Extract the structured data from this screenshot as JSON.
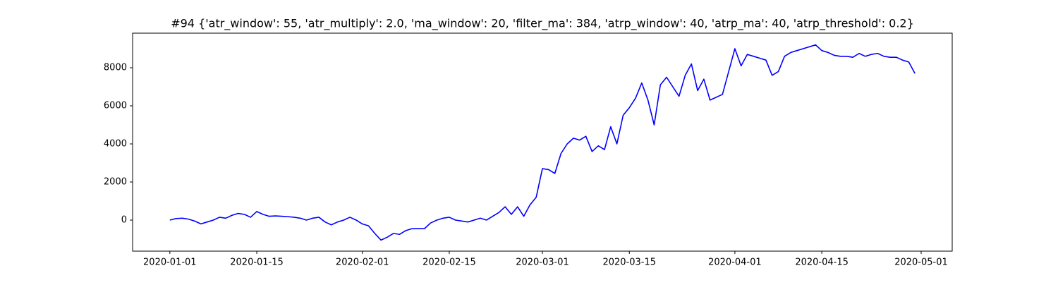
{
  "chart_data": {
    "type": "line",
    "title": "#94 {'atr_window': 55, 'atr_multiply': 2.0, 'ma_window': 20, 'filter_ma': 384, 'atrp_window': 40, 'atrp_ma': 40, 'atrp_threshold': 0.2}",
    "x": [
      "2020-01-01",
      "2020-01-02",
      "2020-01-03",
      "2020-01-04",
      "2020-01-05",
      "2020-01-06",
      "2020-01-07",
      "2020-01-08",
      "2020-01-09",
      "2020-01-10",
      "2020-01-11",
      "2020-01-12",
      "2020-01-13",
      "2020-01-14",
      "2020-01-15",
      "2020-01-16",
      "2020-01-17",
      "2020-01-18",
      "2020-01-19",
      "2020-01-20",
      "2020-01-21",
      "2020-01-22",
      "2020-01-23",
      "2020-01-24",
      "2020-01-25",
      "2020-01-26",
      "2020-01-27",
      "2020-01-28",
      "2020-01-29",
      "2020-01-30",
      "2020-01-31",
      "2020-02-01",
      "2020-02-02",
      "2020-02-03",
      "2020-02-04",
      "2020-02-05",
      "2020-02-06",
      "2020-02-07",
      "2020-02-08",
      "2020-02-09",
      "2020-02-10",
      "2020-02-11",
      "2020-02-12",
      "2020-02-13",
      "2020-02-14",
      "2020-02-15",
      "2020-02-16",
      "2020-02-17",
      "2020-02-18",
      "2020-02-19",
      "2020-02-20",
      "2020-02-21",
      "2020-02-22",
      "2020-02-23",
      "2020-02-24",
      "2020-02-25",
      "2020-02-26",
      "2020-02-27",
      "2020-02-28",
      "2020-02-29",
      "2020-03-01",
      "2020-03-02",
      "2020-03-03",
      "2020-03-04",
      "2020-03-05",
      "2020-03-06",
      "2020-03-07",
      "2020-03-08",
      "2020-03-09",
      "2020-03-10",
      "2020-03-11",
      "2020-03-12",
      "2020-03-13",
      "2020-03-14",
      "2020-03-15",
      "2020-03-16",
      "2020-03-17",
      "2020-03-18",
      "2020-03-19",
      "2020-03-20",
      "2020-03-21",
      "2020-03-22",
      "2020-03-23",
      "2020-03-24",
      "2020-03-25",
      "2020-03-26",
      "2020-03-27",
      "2020-03-28",
      "2020-03-29",
      "2020-03-30",
      "2020-03-31",
      "2020-04-01",
      "2020-04-02",
      "2020-04-03",
      "2020-04-04",
      "2020-04-05",
      "2020-04-06",
      "2020-04-07",
      "2020-04-08",
      "2020-04-09",
      "2020-04-10",
      "2020-04-11",
      "2020-04-12",
      "2020-04-13",
      "2020-04-14",
      "2020-04-15",
      "2020-04-16",
      "2020-04-17",
      "2020-04-18",
      "2020-04-19",
      "2020-04-20",
      "2020-04-21",
      "2020-04-22",
      "2020-04-23",
      "2020-04-24",
      "2020-04-25",
      "2020-04-26",
      "2020-04-27",
      "2020-04-28",
      "2020-04-29",
      "2020-04-30"
    ],
    "series": [
      {
        "color": "#0000ff",
        "values": [
          0,
          80,
          100,
          50,
          -50,
          -200,
          -100,
          0,
          150,
          100,
          250,
          350,
          300,
          150,
          450,
          300,
          200,
          220,
          200,
          180,
          150,
          100,
          0,
          100,
          150,
          -100,
          -250,
          -100,
          0,
          150,
          0,
          -200,
          -300,
          -700,
          -1050,
          -900,
          -700,
          -750,
          -550,
          -450,
          -450,
          -450,
          -150,
          0,
          100,
          150,
          0,
          -50,
          -100,
          0,
          100,
          0,
          200,
          400,
          700,
          300,
          700,
          200,
          800,
          1200,
          2700,
          2650,
          2450,
          3500,
          4000,
          4300,
          4200,
          4400,
          3600,
          3900,
          3700,
          4900,
          4000,
          5500,
          5900,
          6400,
          7200,
          6300,
          5000,
          7100,
          7500,
          7000,
          6500,
          7600,
          8200,
          6800,
          7400,
          6300,
          6450,
          6600,
          7800,
          9000,
          8100,
          8700,
          8600,
          8500,
          8400,
          7600,
          7800,
          8600,
          8800,
          8900,
          9000,
          9100,
          9200,
          8900,
          8800,
          8650,
          8600,
          8600,
          8550,
          8750,
          8600,
          8700,
          8750,
          8600,
          8550,
          8550,
          8400,
          8300,
          7700
        ]
      }
    ],
    "xlim": [
      "2019-12-26",
      "2020-05-06"
    ],
    "xticks": [
      "2020-01-01",
      "2020-01-15",
      "2020-02-01",
      "2020-02-15",
      "2020-03-01",
      "2020-03-15",
      "2020-04-01",
      "2020-04-15",
      "2020-05-01"
    ],
    "ylim": [
      -1630,
      9815
    ],
    "yticks": [
      0,
      2000,
      4000,
      6000,
      8000
    ],
    "grid": false
  }
}
